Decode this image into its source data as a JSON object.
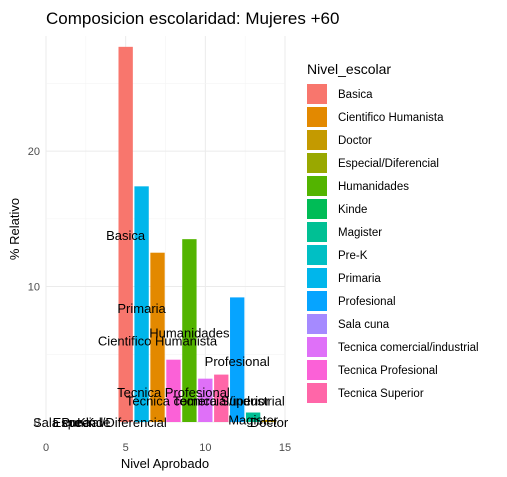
{
  "chart_data": {
    "type": "bar",
    "title": "Composicion escolaridad: Mujeres +60",
    "xlabel": "Nivel Aprobado",
    "ylabel": "% Relativo",
    "xlim": [
      0,
      15
    ],
    "ylim": [
      0,
      28.5
    ],
    "x_ticks": [
      0,
      5,
      10,
      15
    ],
    "y_ticks": [
      0,
      10,
      20
    ],
    "grid": true,
    "legend_title": "Nivel_escolar",
    "legend_position": "right",
    "categories": [
      {
        "name": "Basica",
        "color": "#F8766D"
      },
      {
        "name": "Cientifico Humanista",
        "color": "#E38900"
      },
      {
        "name": "Doctor",
        "color": "#C49A00"
      },
      {
        "name": "Especial/Diferencial",
        "color": "#99A800"
      },
      {
        "name": "Humanidades",
        "color": "#53B400"
      },
      {
        "name": "Kinde",
        "color": "#00BC56"
      },
      {
        "name": "Magister",
        "color": "#00C094"
      },
      {
        "name": "Pre-K",
        "color": "#00BFC4"
      },
      {
        "name": "Primaria",
        "color": "#00B6EB"
      },
      {
        "name": "Profesional",
        "color": "#06A4FF"
      },
      {
        "name": "Sala cuna",
        "color": "#A58AFF"
      },
      {
        "name": "Tecnica comercial/industrial",
        "color": "#DF70F8"
      },
      {
        "name": "Tecnica Profesional",
        "color": "#FB61D7"
      },
      {
        "name": "Tecnica Superior",
        "color": "#FF66A8"
      }
    ],
    "bars": [
      {
        "category": "Basica",
        "x": 5,
        "value": 27.7,
        "label": "Basica",
        "label_y": 13.8
      },
      {
        "category": "Primaria",
        "x": 6,
        "value": 17.4,
        "label": "Primaria",
        "label_y": 8.4
      },
      {
        "category": "Cientifico Humanista",
        "x": 7,
        "value": 12.5,
        "label": "Cientifico Humanista",
        "label_y": 6.0
      },
      {
        "category": "Tecnica Profesional",
        "x": 8,
        "value": 4.6,
        "label": "Tecnica Profesional",
        "label_y": 2.2
      },
      {
        "category": "Humanidades",
        "x": 9,
        "value": 13.5,
        "label": "Humanidades",
        "label_y": 6.6
      },
      {
        "category": "Tecnica comercial/industrial",
        "x": 10,
        "value": 3.2,
        "label": "Tecnica comercial/industrial",
        "label_y": 1.6
      },
      {
        "category": "Tecnica Superior",
        "x": 11,
        "value": 3.5,
        "label": "Tecnica Superior",
        "label_y": 1.6
      },
      {
        "category": "Profesional",
        "x": 12,
        "value": 9.2,
        "label": "Profesional",
        "label_y": 4.5
      },
      {
        "category": "Magister",
        "x": 13,
        "value": 0.7,
        "label": "Magister",
        "label_y": 0.2
      },
      {
        "category": "Doctor",
        "x": 14,
        "value": 0.15,
        "label": "Doctor",
        "label_y": 0.0
      },
      {
        "category": "Sala cuna",
        "x": 1,
        "value": 0,
        "label": "Sala cuna",
        "label_y": 0.0
      },
      {
        "category": "Pre-K",
        "x": 2,
        "value": 0,
        "label": "Pre-K",
        "label_y": 0.0
      },
      {
        "category": "Kinde",
        "x": 3,
        "value": 0,
        "label": "Kinde",
        "label_y": 0.0
      },
      {
        "category": "Especial/Diferencial",
        "x": 4,
        "value": 0,
        "label": "Especial/Diferencial",
        "label_y": 0.0
      }
    ]
  }
}
